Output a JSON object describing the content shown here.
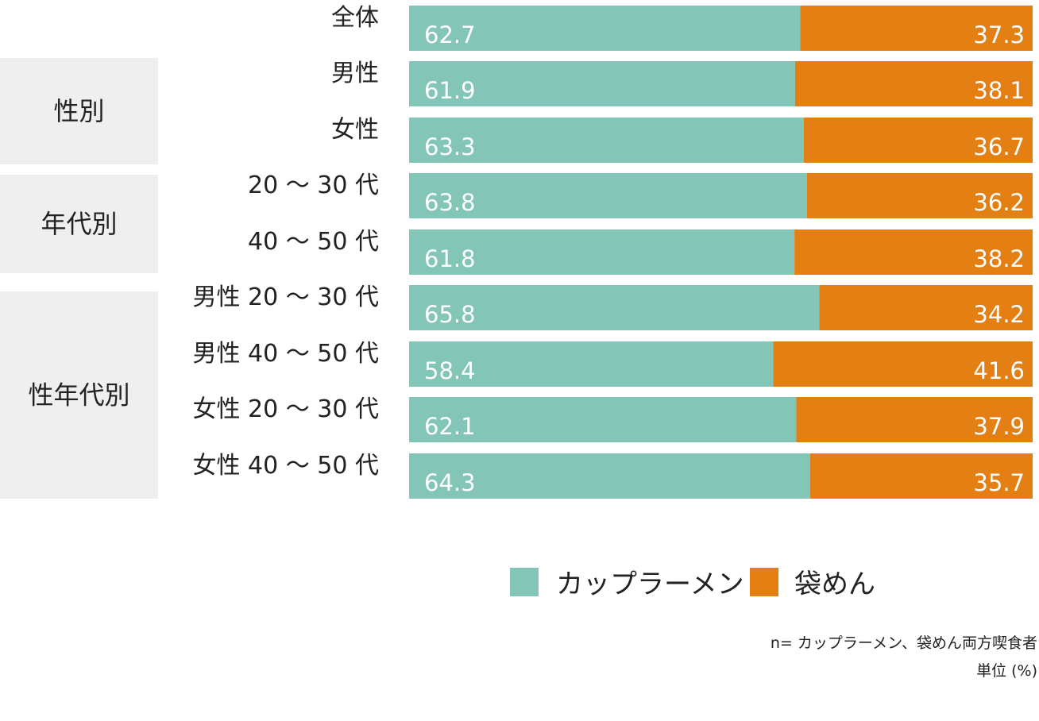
{
  "chart_data": {
    "type": "bar",
    "orientation": "horizontal",
    "stacked": true,
    "percent": true,
    "categories": [
      "全体",
      "男性",
      "女性",
      "20 〜 30 代",
      "40 〜 50 代",
      "男性 20 〜 30 代",
      "男性 40 〜 50 代",
      "女性 20 〜 30 代",
      "女性 40 〜 50 代"
    ],
    "groups": [
      {
        "label": "",
        "rows": [
          0
        ]
      },
      {
        "label": "性別",
        "rows": [
          1,
          2
        ]
      },
      {
        "label": "年代別",
        "rows": [
          3,
          4
        ]
      },
      {
        "label": "性年代別",
        "rows": [
          5,
          6,
          7,
          8
        ]
      }
    ],
    "series": [
      {
        "name": "カップラーメン",
        "color": "#83c5b6",
        "values": [
          62.7,
          61.9,
          63.3,
          63.8,
          61.8,
          65.8,
          58.4,
          62.1,
          64.3
        ],
        "labels": [
          "62.7",
          "61.9",
          "63.3",
          "63.8",
          "61.8",
          "65.8",
          "58.4",
          "62.1",
          "64.3"
        ]
      },
      {
        "name": "袋めん",
        "color": "#e47f14",
        "values": [
          37.3,
          38.1,
          36.7,
          36.2,
          38.2,
          34.2,
          41.6,
          37.9,
          35.7
        ],
        "labels": [
          "37.3",
          "38.1",
          "36.7",
          "36.2",
          "38.2",
          "34.2",
          "41.6",
          "37.9",
          "35.7"
        ]
      }
    ],
    "xlim": [
      0,
      100
    ],
    "legend_position": "bottom-right"
  },
  "notes": {
    "sample": "n= カップラーメン、袋めん両方喫食者",
    "unit": "単位 (%)"
  }
}
